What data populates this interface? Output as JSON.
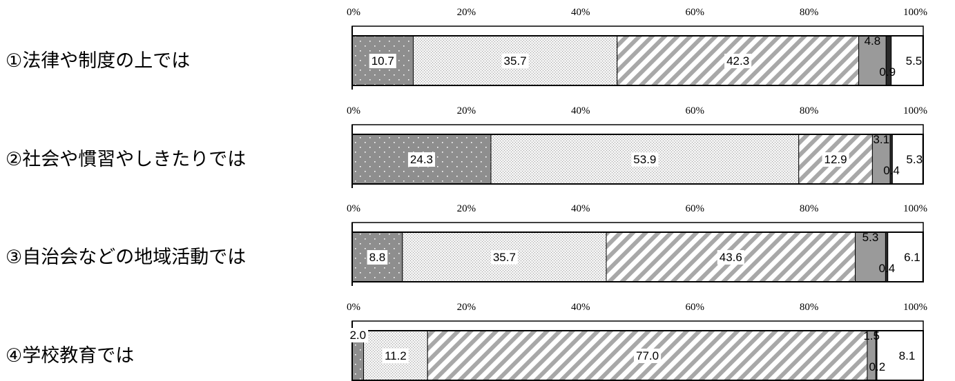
{
  "chart_data": {
    "type": "bar",
    "orientation": "horizontal",
    "stacked": true,
    "xlim": [
      0,
      100
    ],
    "x_ticks": [
      "0%",
      "20%",
      "40%",
      "60%",
      "80%",
      "100%"
    ],
    "categories": [
      "①法律や制度の上では",
      "②社会や慣習やしきたりでは",
      "③自治会などの地域活動では",
      "④学校教育では"
    ],
    "series": [
      {
        "values": [
          10.7,
          24.3,
          8.8,
          2.0
        ],
        "fill": "dots-dark",
        "color": "#8c8c8c"
      },
      {
        "values": [
          35.7,
          53.9,
          35.7,
          11.2
        ],
        "fill": "dots-light",
        "color": "#e6e6e6"
      },
      {
        "values": [
          42.3,
          12.9,
          43.6,
          77.0
        ],
        "fill": "diagonal-stripes",
        "color": "#a0a0a0"
      },
      {
        "values": [
          4.8,
          3.1,
          5.3,
          1.5
        ],
        "fill": "solid",
        "color": "#9a9a9a"
      },
      {
        "values": [
          0.9,
          0.4,
          0.4,
          0.2
        ],
        "fill": "solid",
        "color": "#2a2a2a"
      },
      {
        "values": [
          5.5,
          5.3,
          6.1,
          8.1
        ],
        "fill": "solid",
        "color": "#ffffff"
      }
    ],
    "value_labels": [
      [
        "10.7",
        "35.7",
        "42.3",
        "4.8",
        "0.9",
        "5.5"
      ],
      [
        "24.3",
        "53.9",
        "12.9",
        "3.1",
        "0.4",
        "5.3"
      ],
      [
        "8.8",
        "35.7",
        "43.6",
        "5.3",
        "0.4",
        "6.1"
      ],
      [
        "2.0",
        "11.2",
        "77.0",
        "1.5",
        "0.2",
        "8.1"
      ]
    ],
    "grid": false,
    "legend": "none"
  }
}
